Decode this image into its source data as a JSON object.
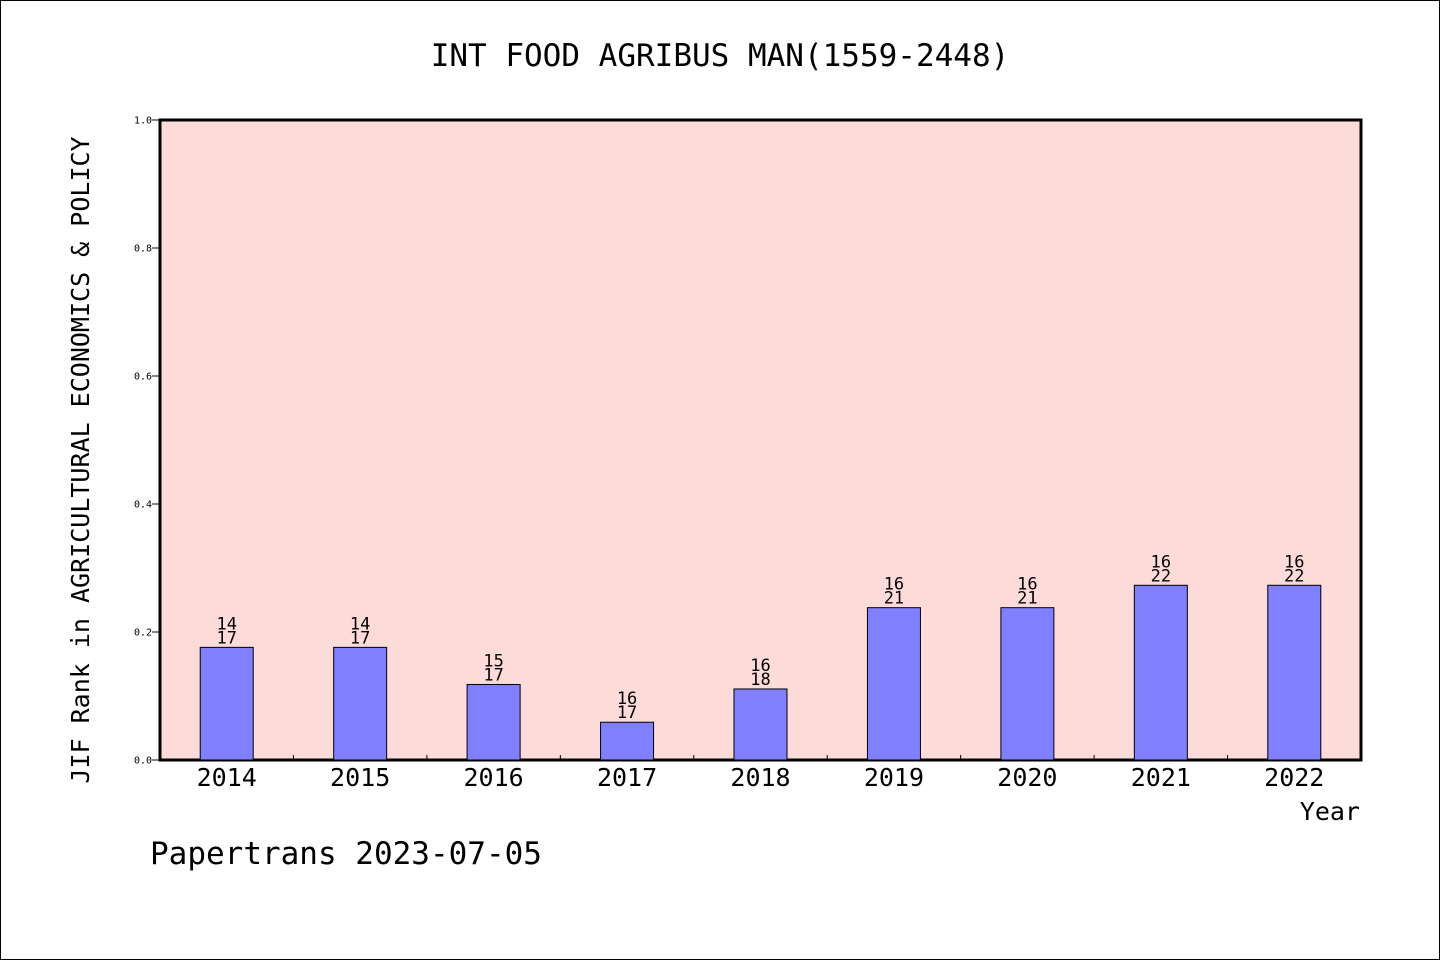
{
  "chart_data": {
    "type": "bar",
    "title": "INT FOOD AGRIBUS MAN(1559-2448)",
    "xlabel": "Year",
    "ylabel": "JIF Rank in AGRICULTURAL ECONOMICS & POLICY",
    "categories": [
      "2014",
      "2015",
      "2016",
      "2017",
      "2018",
      "2019",
      "2020",
      "2021",
      "2022"
    ],
    "values": [
      0.176,
      0.176,
      0.118,
      0.059,
      0.111,
      0.238,
      0.238,
      0.273,
      0.273
    ],
    "rank_labels": [
      [
        "14",
        "17"
      ],
      [
        "14",
        "17"
      ],
      [
        "15",
        "17"
      ],
      [
        "16",
        "17"
      ],
      [
        "16",
        "18"
      ],
      [
        "16",
        "21"
      ],
      [
        "16",
        "21"
      ],
      [
        "16",
        "22"
      ],
      [
        "16",
        "22"
      ]
    ],
    "ylim": [
      0.0,
      1.0
    ],
    "yticks": [
      "0.0",
      "0.2",
      "0.4",
      "0.6",
      "0.8",
      "1.0"
    ],
    "grid": false,
    "colors": {
      "bar_fill": "#8080ff",
      "bar_stroke": "#000000",
      "plot_background": "#fddbd8"
    }
  },
  "footer": {
    "text": "Papertrans 2023-07-05"
  }
}
